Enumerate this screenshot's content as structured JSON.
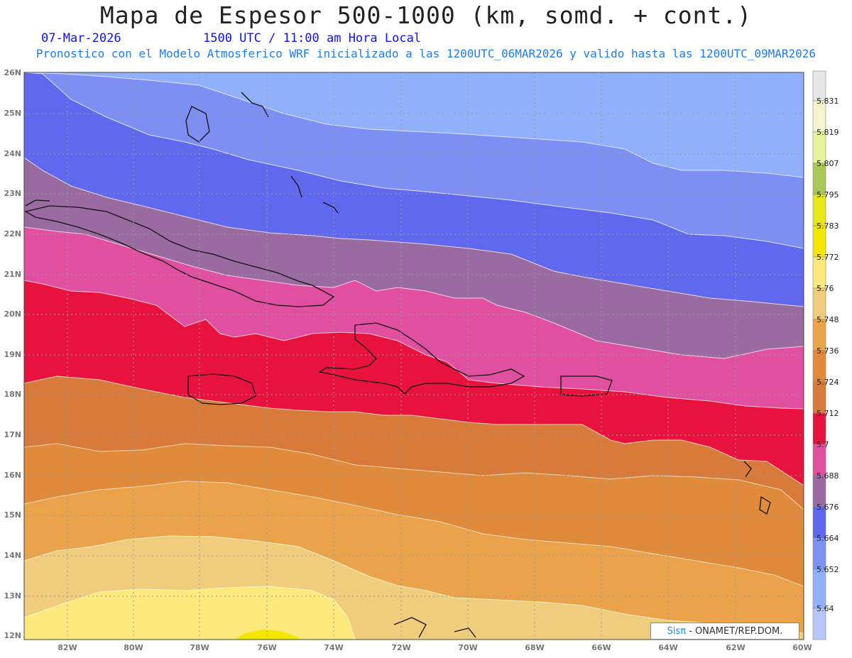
{
  "header": {
    "title": "Mapa de Espesor 500-1000 (km, somd. + cont.)",
    "date": "07-Mar-2026",
    "time": "1500 UTC / 11:00 am Hora Local",
    "subtitle": "Pronostico con el Modelo Atmosferico WRF inicializado a las 1200UTC_06MAR2026 y valido hasta las  1200UTC_09MAR2026"
  },
  "axes": {
    "lat_labels": [
      "26N",
      "25N",
      "24N",
      "23N",
      "22N",
      "21N",
      "20N",
      "19N",
      "18N",
      "17N",
      "16N",
      "15N",
      "14N",
      "13N",
      "12N"
    ],
    "lon_labels": [
      "82W",
      "80W",
      "78W",
      "76W",
      "74W",
      "72W",
      "70W",
      "68W",
      "66W",
      "64W",
      "62W",
      "60W"
    ]
  },
  "colorbar": {
    "labels": [
      "5.831",
      "5.819",
      "5.807",
      "5.795",
      "5.783",
      "5.772",
      "5.76",
      "5.748",
      "5.736",
      "5.724",
      "5.712",
      "5.7",
      "5.688",
      "5.676",
      "5.664",
      "5.652",
      "5.64"
    ],
    "colors": [
      "#e6e6e6",
      "#f3f5cf",
      "#e6f29a",
      "#a8c85a",
      "#e6e619",
      "#f5e600",
      "#fbe87a",
      "#f0cc7c",
      "#eba54a",
      "#e3893a",
      "#d87a3a",
      "#e8123e",
      "#e24f9c",
      "#9a6aa0",
      "#5f67ee",
      "#7d90f4",
      "#93b0fb",
      "#b8c6fa"
    ]
  },
  "credit": {
    "brand": "Sisπ",
    "text": "- ONAMET/REP.DOM."
  }
}
